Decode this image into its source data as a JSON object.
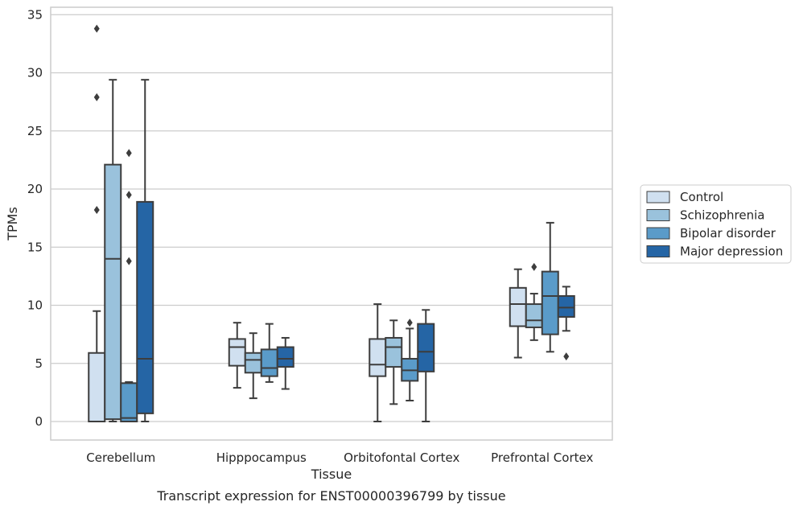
{
  "chart_data": {
    "type": "box",
    "title": "",
    "caption": "Transcript expression for ENST00000396799 by tissue",
    "xlabel": "Tissue",
    "ylabel": "TPMs",
    "ylim": [
      -1.6,
      35.6
    ],
    "yticks": [
      0,
      5,
      10,
      15,
      20,
      25,
      30,
      35
    ],
    "grid": "horizontal",
    "legend_position": "right",
    "categories": [
      "Cerebellum",
      "Hipppocampus",
      "Orbitofontal Cortex",
      "Prefrontal Cortex"
    ],
    "series": [
      {
        "name": "Control",
        "color": "#d0e0f0",
        "boxes": [
          {
            "whisker_low": 0,
            "q1": 0,
            "median": 0,
            "q3": 5.9,
            "whisker_high": 9.5,
            "outliers": [
              18.2,
              27.9,
              33.8
            ]
          },
          {
            "whisker_low": 2.9,
            "q1": 4.8,
            "median": 6.4,
            "q3": 7.1,
            "whisker_high": 8.5,
            "outliers": []
          },
          {
            "whisker_low": 0,
            "q1": 3.9,
            "median": 4.9,
            "q3": 7.1,
            "whisker_high": 10.1,
            "outliers": []
          },
          {
            "whisker_low": 5.5,
            "q1": 8.2,
            "median": 10.1,
            "q3": 11.5,
            "whisker_high": 13.1,
            "outliers": []
          }
        ]
      },
      {
        "name": "Schizophrenia",
        "color": "#9ac2dc",
        "boxes": [
          {
            "whisker_low": 0,
            "q1": 0.2,
            "median": 14.0,
            "q3": 22.1,
            "whisker_high": 29.4,
            "outliers": []
          },
          {
            "whisker_low": 2.0,
            "q1": 4.2,
            "median": 5.3,
            "q3": 5.9,
            "whisker_high": 7.6,
            "outliers": []
          },
          {
            "whisker_low": 1.5,
            "q1": 4.7,
            "median": 6.4,
            "q3": 7.2,
            "whisker_high": 8.7,
            "outliers": []
          },
          {
            "whisker_low": 7.0,
            "q1": 8.1,
            "median": 8.7,
            "q3": 10.1,
            "whisker_high": 11.0,
            "outliers": [
              13.3
            ]
          }
        ]
      },
      {
        "name": "Bipolar disorder",
        "color": "#5a9bc9",
        "boxes": [
          {
            "whisker_low": 0,
            "q1": 0,
            "median": 0.3,
            "q3": 3.3,
            "whisker_high": 3.4,
            "outliers": [
              13.8,
              19.5,
              23.1
            ]
          },
          {
            "whisker_low": 3.4,
            "q1": 3.9,
            "median": 4.6,
            "q3": 6.2,
            "whisker_high": 8.4,
            "outliers": []
          },
          {
            "whisker_low": 1.8,
            "q1": 3.5,
            "median": 4.4,
            "q3": 5.4,
            "whisker_high": 8.0,
            "outliers": [
              8.5
            ]
          },
          {
            "whisker_low": 6.0,
            "q1": 7.5,
            "median": 10.8,
            "q3": 12.9,
            "whisker_high": 17.1,
            "outliers": []
          }
        ]
      },
      {
        "name": "Major depression",
        "color": "#2565a5",
        "boxes": [
          {
            "whisker_low": 0,
            "q1": 0.7,
            "median": 5.4,
            "q3": 18.9,
            "whisker_high": 29.4,
            "outliers": []
          },
          {
            "whisker_low": 2.8,
            "q1": 4.7,
            "median": 5.4,
            "q3": 6.4,
            "whisker_high": 7.2,
            "outliers": []
          },
          {
            "whisker_low": 0,
            "q1": 4.3,
            "median": 6.0,
            "q3": 8.4,
            "whisker_high": 9.6,
            "outliers": []
          },
          {
            "whisker_low": 7.8,
            "q1": 9.0,
            "median": 9.8,
            "q3": 10.8,
            "whisker_high": 11.6,
            "outliers": [
              5.6
            ]
          }
        ]
      }
    ]
  }
}
